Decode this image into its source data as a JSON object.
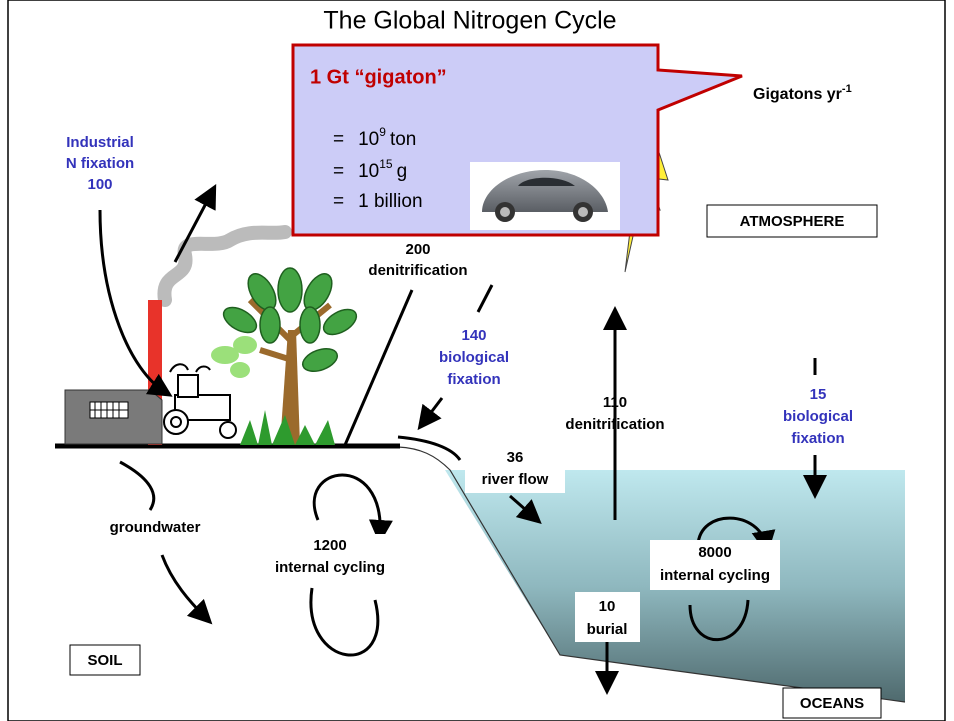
{
  "title": "The Global Nitrogen Cycle",
  "callout": {
    "heading": "1 Gt “gigaton”",
    "lines": [
      {
        "eq": "=",
        "base": "10",
        "sup": "9",
        "unit": "ton"
      },
      {
        "eq": "=",
        "base": "10",
        "sup": "15",
        "unit": "g"
      },
      {
        "eq": "=",
        "text": "1 billion"
      }
    ]
  },
  "units": {
    "text": "Gigatons yr",
    "sup": "-1"
  },
  "flows": [
    {
      "lines": [
        "Industrial",
        "N fixation",
        "100"
      ]
    },
    {
      "lines": [
        "200",
        "denitrification"
      ]
    },
    {
      "lines": [
        "140",
        "biological",
        "fixation"
      ]
    },
    {
      "lines": [
        "110",
        "denitrification"
      ]
    },
    {
      "lines": [
        "15",
        "biological",
        "fixation"
      ]
    },
    {
      "lines": [
        "36",
        "river flow"
      ]
    },
    {
      "lines": [
        "groundwater"
      ]
    },
    {
      "lines": [
        "10",
        "burial"
      ]
    }
  ],
  "pools": [
    {
      "lines": [
        "1200",
        "internal cycling"
      ]
    },
    {
      "lines": [
        "8000",
        "internal cycling"
      ]
    }
  ],
  "reservoirs": [
    "ATMOSPHERE",
    "SOIL",
    "OCEANS"
  ]
}
